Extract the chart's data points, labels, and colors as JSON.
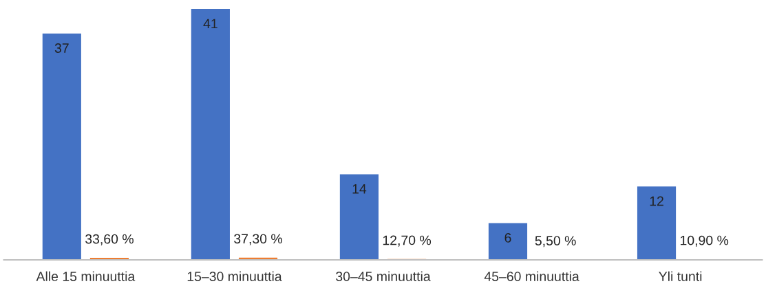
{
  "chart_data": {
    "type": "bar",
    "categories": [
      "Alle 15 minuuttia",
      "15–30 minuuttia",
      "30–45 minuuttia",
      "45–60 minuuttia",
      "Yli tunti"
    ],
    "series": [
      {
        "color": "#4472c4",
        "values": [
          37,
          41,
          14,
          6,
          12
        ],
        "value_labels": [
          "37",
          "41",
          "14",
          "6",
          "12"
        ]
      },
      {
        "color": "#ed7d31",
        "values": [
          0.336,
          0.373,
          0.127,
          0.055,
          0.109
        ],
        "value_labels": [
          "33,60 %",
          "37,30 %",
          "12,70 %",
          "5,50 %",
          "10,90 %"
        ]
      }
    ],
    "grid": false,
    "legend": false
  }
}
